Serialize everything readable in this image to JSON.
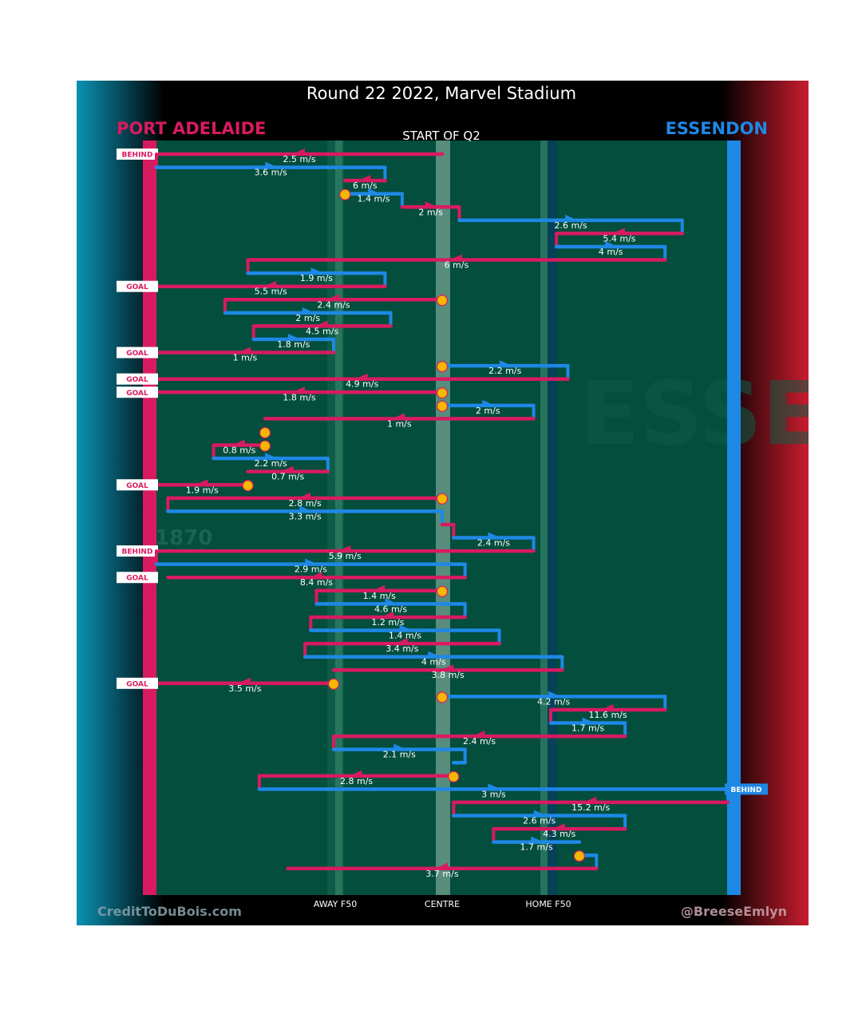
{
  "chart_data": {
    "type": "line",
    "title": "Round 22 2022, Marvel Stadium",
    "subtitle": "START OF Q2",
    "teams": {
      "left": {
        "name": "PORT ADELAIDE",
        "color": "#d81b60"
      },
      "right": {
        "name": "ESSENDON",
        "color": "#1e88e5"
      }
    },
    "x_ticks": [
      "AWAY F50",
      "CENTRE",
      "HOME F50"
    ],
    "credit_left": "CreditToDuBois.com",
    "credit_right": "@BreeseEmlyn",
    "background_text": {
      "year": "1870",
      "word": "ESSE"
    },
    "colors": {
      "port": "#d81b60",
      "essendon": "#1e88e5",
      "ground": "#034e3c",
      "ball": "#f5b800",
      "ball_edge": "#d81b60"
    },
    "x_range": [
      0,
      100
    ],
    "chains": [
      {
        "team": "port",
        "from": 50,
        "to": 0,
        "speed": "2.5 m/s",
        "result": "BEHIND"
      },
      {
        "team": "ess",
        "from": 0,
        "to": 40,
        "speed": "3.6 m/s"
      },
      {
        "team": "port",
        "from": 40,
        "to": 33,
        "speed": "6 m/s"
      },
      {
        "team": "ess",
        "from": 33,
        "to": 43,
        "speed": "1.4 m/s",
        "start_ball": true
      },
      {
        "team": "port",
        "from": 43,
        "to": 53,
        "speed": "2 m/s"
      },
      {
        "team": "ess",
        "from": 53,
        "to": 92,
        "speed": "2.6 m/s"
      },
      {
        "team": "port",
        "from": 92,
        "to": 70,
        "speed": "5.4 m/s"
      },
      {
        "team": "ess",
        "from": 70,
        "to": 89,
        "speed": "4 m/s"
      },
      {
        "team": "port",
        "from": 89,
        "to": 16,
        "speed": "6 m/s"
      },
      {
        "team": "ess",
        "from": 16,
        "to": 40,
        "speed": "1.9 m/s"
      },
      {
        "team": "port",
        "from": 40,
        "to": 0,
        "speed": "5.5 m/s",
        "result": "GOAL"
      },
      {
        "team": "port",
        "from": 50,
        "to": 12,
        "speed": "2.4 m/s",
        "start_ball": true
      },
      {
        "team": "ess",
        "from": 12,
        "to": 41,
        "speed": "2 m/s"
      },
      {
        "team": "port",
        "from": 41,
        "to": 17,
        "speed": "4.5 m/s"
      },
      {
        "team": "ess",
        "from": 17,
        "to": 31,
        "speed": "1.8 m/s"
      },
      {
        "team": "port",
        "from": 31,
        "to": 0,
        "speed": "1 m/s",
        "result": "GOAL"
      },
      {
        "team": "ess",
        "from": 50,
        "to": 72,
        "speed": "2.2 m/s",
        "start_ball": true
      },
      {
        "team": "port",
        "from": 72,
        "to": 0,
        "speed": "4.9 m/s",
        "result": "GOAL"
      },
      {
        "team": "port",
        "from": 50,
        "to": 0,
        "speed": "1.8 m/s",
        "result": "GOAL",
        "start_ball": true
      },
      {
        "team": "ess",
        "from": 50,
        "to": 66,
        "speed": "2 m/s",
        "start_ball": true
      },
      {
        "team": "port",
        "from": 66,
        "to": 19,
        "speed": "1 m/s"
      },
      {
        "team": "port",
        "from": 19,
        "to": 19,
        "speed": "",
        "start_ball": true
      },
      {
        "team": "port",
        "from": 19,
        "to": 10,
        "speed": "0.8 m/s",
        "start_ball": true
      },
      {
        "team": "ess",
        "from": 10,
        "to": 30,
        "speed": "2.2 m/s"
      },
      {
        "team": "port",
        "from": 30,
        "to": 16,
        "speed": "0.7 m/s"
      },
      {
        "team": "port",
        "from": 16,
        "to": 0,
        "speed": "1.9 m/s",
        "result": "GOAL",
        "start_ball": true
      },
      {
        "team": "port",
        "from": 50,
        "to": 2,
        "speed": "2.8 m/s",
        "start_ball": true
      },
      {
        "team": "ess",
        "from": 2,
        "to": 50,
        "speed": "3.3 m/s"
      },
      {
        "team": "port",
        "from": 50,
        "to": 52,
        "speed": ""
      },
      {
        "team": "ess",
        "from": 52,
        "to": 66,
        "speed": "2.4 m/s"
      },
      {
        "team": "port",
        "from": 66,
        "to": 0,
        "speed": "5.9 m/s",
        "result": "BEHIND"
      },
      {
        "team": "ess",
        "from": 0,
        "to": 54,
        "speed": "2.9 m/s"
      },
      {
        "team": "port",
        "from": 54,
        "to": 2,
        "speed": "8.4 m/s",
        "result": "GOAL"
      },
      {
        "team": "port",
        "from": 50,
        "to": 28,
        "speed": "1.4 m/s",
        "start_ball": true
      },
      {
        "team": "ess",
        "from": 28,
        "to": 54,
        "speed": "4.6 m/s"
      },
      {
        "team": "port",
        "from": 54,
        "to": 27,
        "speed": "1.2 m/s"
      },
      {
        "team": "ess",
        "from": 27,
        "to": 60,
        "speed": "1.4 m/s"
      },
      {
        "team": "port",
        "from": 60,
        "to": 26,
        "speed": "3.4 m/s"
      },
      {
        "team": "ess",
        "from": 26,
        "to": 71,
        "speed": "4 m/s"
      },
      {
        "team": "port",
        "from": 71,
        "to": 31,
        "speed": "3.8 m/s"
      },
      {
        "team": "port",
        "from": 31,
        "to": 0,
        "speed": "3.5 m/s",
        "result": "GOAL",
        "start_ball": true
      },
      {
        "team": "ess",
        "from": 50,
        "to": 89,
        "speed": "4.2 m/s",
        "start_ball": true
      },
      {
        "team": "port",
        "from": 89,
        "to": 69,
        "speed": "11.6 m/s"
      },
      {
        "team": "ess",
        "from": 69,
        "to": 82,
        "speed": "1.7 m/s"
      },
      {
        "team": "port",
        "from": 82,
        "to": 31,
        "speed": "2.4 m/s"
      },
      {
        "team": "ess",
        "from": 31,
        "to": 54,
        "speed": "2.1 m/s"
      },
      {
        "team": "ess",
        "from": 54,
        "to": 52,
        "speed": ""
      },
      {
        "team": "port",
        "from": 52,
        "to": 18,
        "speed": "2.8 m/s",
        "start_ball": true
      },
      {
        "team": "ess",
        "from": 18,
        "to": 100,
        "speed": "3 m/s",
        "result": "BEHIND"
      },
      {
        "team": "port",
        "from": 100,
        "to": 52,
        "speed": "15.2 m/s"
      },
      {
        "team": "ess",
        "from": 52,
        "to": 82,
        "speed": "2.6 m/s"
      },
      {
        "team": "port",
        "from": 82,
        "to": 59,
        "speed": "4.3 m/s"
      },
      {
        "team": "ess",
        "from": 59,
        "to": 74,
        "speed": "1.7 m/s"
      },
      {
        "team": "ess",
        "from": 74,
        "to": 77,
        "speed": "",
        "start_ball": true
      },
      {
        "team": "port",
        "from": 77,
        "to": 23,
        "speed": "3.7 m/s"
      }
    ]
  }
}
